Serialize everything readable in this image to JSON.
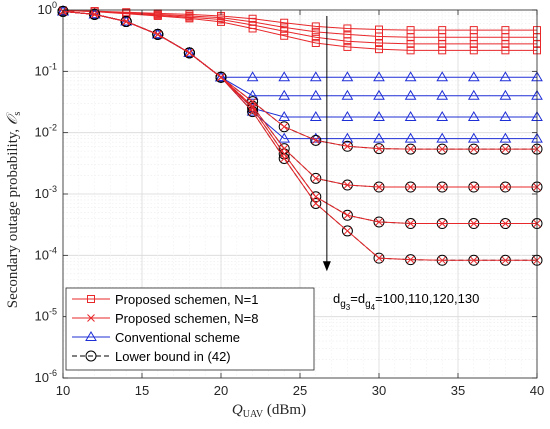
{
  "chart_data": {
    "type": "line",
    "xlabel": "Q",
    "xlabel_sub": "UAV",
    "xlabel_unit": " (dBm)",
    "ylabel": "Secondary outage probability, ",
    "ylabel_symbol": "𝒪",
    "ylabel_sub": "s",
    "xlim": [
      10,
      40
    ],
    "ylim": [
      1e-06,
      1
    ],
    "yscale": "log",
    "grid": true,
    "legend_position": "bottom-left",
    "x_ticks": [
      "10",
      "15",
      "20",
      "25",
      "30",
      "35",
      "40"
    ],
    "y_tick_bases": [
      "10",
      "10",
      "10",
      "10",
      "10",
      "10",
      "10"
    ],
    "y_tick_exps": [
      "-6",
      "-5",
      "-4",
      "-3",
      "-2",
      "-1",
      "0"
    ],
    "x": [
      10,
      12,
      14,
      16,
      18,
      20,
      22,
      24,
      26,
      28,
      30,
      32,
      34,
      36,
      38,
      40
    ],
    "series_groups": [
      {
        "name": "Proposed schemen, N=1",
        "color": "#e8272a",
        "marker": "square",
        "curves": [
          [
            0.98,
            0.96,
            0.92,
            0.88,
            0.85,
            0.8,
            0.72,
            0.62,
            0.54,
            0.5,
            0.48,
            0.47,
            0.47,
            0.47,
            0.47,
            0.47
          ],
          [
            0.98,
            0.95,
            0.9,
            0.85,
            0.8,
            0.75,
            0.64,
            0.52,
            0.44,
            0.4,
            0.37,
            0.36,
            0.36,
            0.36,
            0.36,
            0.36
          ],
          [
            0.98,
            0.95,
            0.88,
            0.82,
            0.76,
            0.7,
            0.57,
            0.45,
            0.36,
            0.31,
            0.29,
            0.28,
            0.28,
            0.28,
            0.28,
            0.28
          ],
          [
            0.98,
            0.94,
            0.87,
            0.8,
            0.73,
            0.64,
            0.5,
            0.38,
            0.29,
            0.25,
            0.23,
            0.22,
            0.22,
            0.22,
            0.22,
            0.22
          ]
        ]
      },
      {
        "name": "Proposed schemen, N=8",
        "color": "#e8272a",
        "marker": "x",
        "curves": [
          [
            0.95,
            0.85,
            0.65,
            0.4,
            0.2,
            0.08,
            0.032,
            0.0125,
            0.0075,
            0.006,
            0.0055,
            0.0054,
            0.0054,
            0.0054,
            0.0054,
            0.0054
          ],
          [
            0.95,
            0.85,
            0.65,
            0.4,
            0.2,
            0.08,
            0.027,
            0.0055,
            0.0018,
            0.0014,
            0.0013,
            0.0013,
            0.0013,
            0.0013,
            0.0013,
            0.0013
          ],
          [
            0.95,
            0.85,
            0.65,
            0.4,
            0.2,
            0.08,
            0.025,
            0.0045,
            0.0009,
            0.00045,
            0.00035,
            0.00033,
            0.00033,
            0.00033,
            0.00033,
            0.00033
          ],
          [
            0.95,
            0.85,
            0.65,
            0.4,
            0.2,
            0.08,
            0.022,
            0.0038,
            0.0007,
            0.00025,
            9e-05,
            8.5e-05,
            8.3e-05,
            8.3e-05,
            8.3e-05,
            8.3e-05
          ]
        ]
      },
      {
        "name": "Conventional scheme",
        "color": "#1f2fd6",
        "marker": "triangle",
        "curves": [
          [
            0.95,
            0.85,
            0.65,
            0.4,
            0.2,
            0.08,
            0.08,
            0.08,
            0.08,
            0.08,
            0.08,
            0.08,
            0.08,
            0.08,
            0.08,
            0.08
          ],
          [
            0.95,
            0.85,
            0.65,
            0.4,
            0.2,
            0.08,
            0.04,
            0.04,
            0.04,
            0.04,
            0.04,
            0.04,
            0.04,
            0.04,
            0.04,
            0.04
          ],
          [
            0.95,
            0.85,
            0.65,
            0.4,
            0.2,
            0.08,
            0.025,
            0.018,
            0.018,
            0.018,
            0.018,
            0.018,
            0.018,
            0.018,
            0.018,
            0.018
          ],
          [
            0.95,
            0.85,
            0.65,
            0.4,
            0.2,
            0.08,
            0.022,
            0.008,
            0.008,
            0.008,
            0.008,
            0.008,
            0.008,
            0.008,
            0.008,
            0.008
          ]
        ]
      },
      {
        "name": "Lower bound in (42)",
        "color": "#000000",
        "marker": "circle",
        "dashed": true,
        "curves": [
          [
            0.95,
            0.85,
            0.65,
            0.4,
            0.2,
            0.08,
            0.032,
            0.0125,
            0.0075,
            0.006,
            0.0055,
            0.0054,
            0.0054,
            0.0054,
            0.0054,
            0.0054
          ],
          [
            0.95,
            0.85,
            0.65,
            0.4,
            0.2,
            0.08,
            0.027,
            0.0055,
            0.0018,
            0.0014,
            0.0013,
            0.0013,
            0.0013,
            0.0013,
            0.0013,
            0.0013
          ],
          [
            0.95,
            0.85,
            0.65,
            0.4,
            0.2,
            0.08,
            0.025,
            0.0045,
            0.0009,
            0.00045,
            0.00035,
            0.00033,
            0.00033,
            0.00033,
            0.00033,
            0.00033
          ],
          [
            0.95,
            0.85,
            0.65,
            0.4,
            0.2,
            0.08,
            0.022,
            0.0038,
            0.0007,
            0.00025,
            9e-05,
            8.5e-05,
            8.3e-05,
            8.3e-05,
            8.3e-05,
            8.3e-05
          ]
        ]
      }
    ],
    "annotation": {
      "prefix": "d",
      "sub1": "g",
      "subsub1": "3",
      "mid": "=d",
      "sub2": "g",
      "subsub2": "4",
      "suffix": "=100,110,120,130",
      "arrow_x": 26.7,
      "arrow_from": 0.8,
      "arrow_to": 5.5e-05
    }
  }
}
